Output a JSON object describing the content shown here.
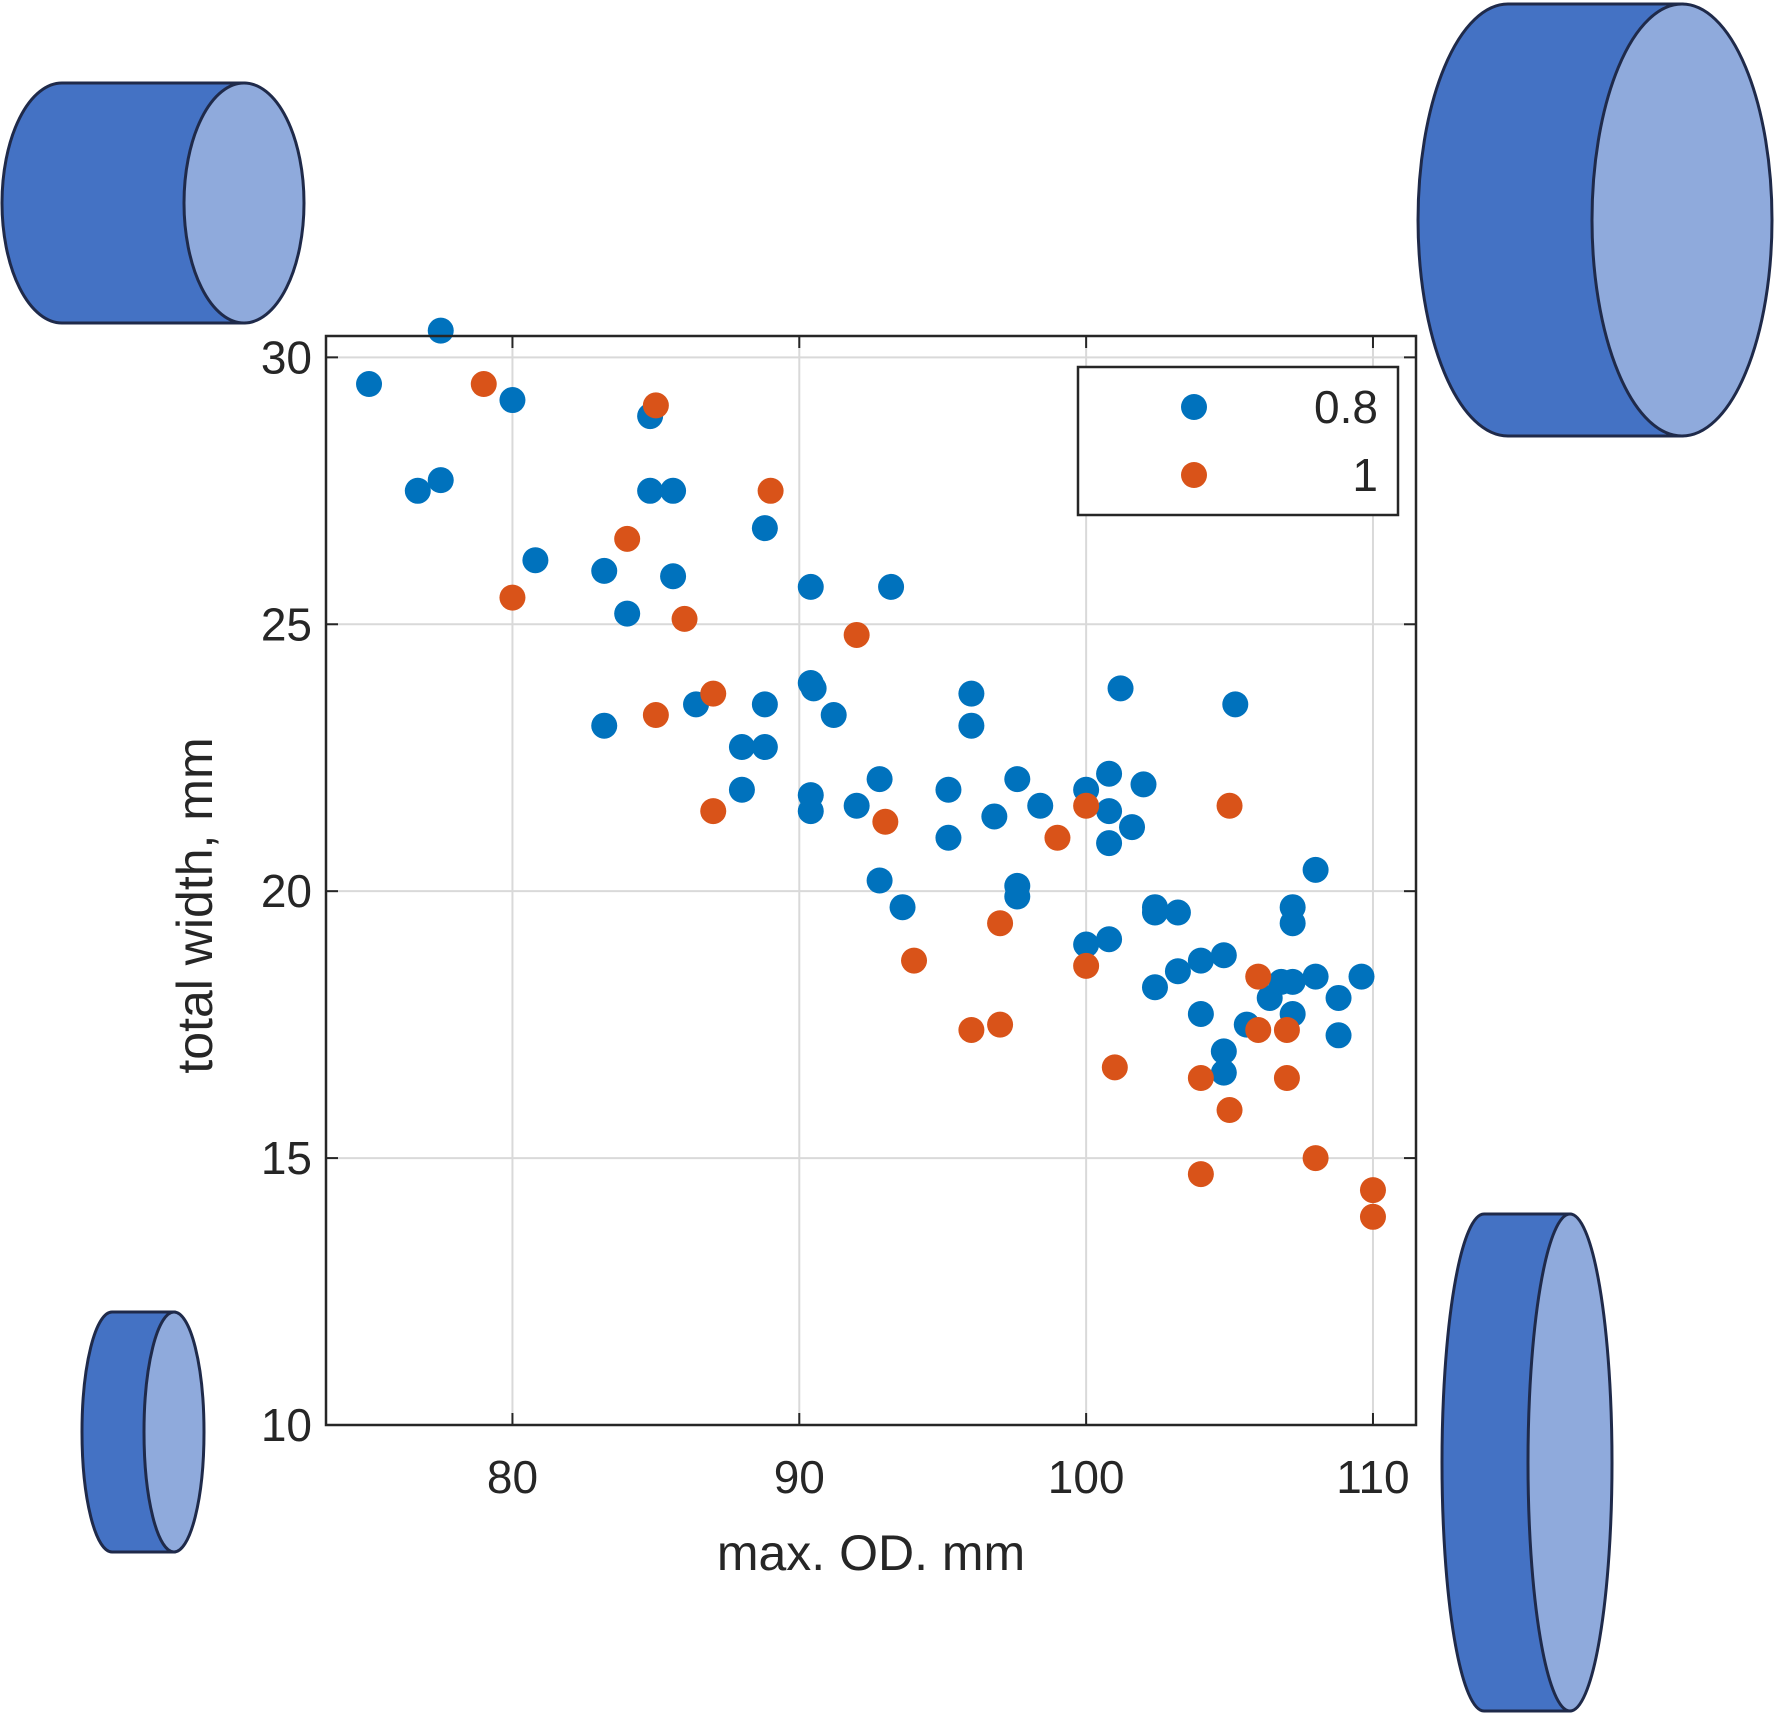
{
  "chart_data": {
    "type": "scatter",
    "xlabel": "max. OD. mm",
    "ylabel": "total width, mm",
    "xlim": [
      73.5,
      111.5
    ],
    "ylim": [
      10,
      30.4
    ],
    "xticks": [
      80,
      90,
      100,
      110
    ],
    "yticks": [
      10,
      15,
      20,
      25,
      30
    ],
    "grid": true,
    "legend_position": "top-right",
    "series": [
      {
        "name": "0.8",
        "color": "#0072BD",
        "points": [
          [
            75.0,
            29.5
          ],
          [
            77.5,
            30.5
          ],
          [
            80.0,
            29.2
          ],
          [
            76.7,
            27.5
          ],
          [
            77.5,
            27.7
          ],
          [
            80.8,
            26.2
          ],
          [
            83.2,
            26.0
          ],
          [
            84.0,
            25.2
          ],
          [
            84.8,
            28.9
          ],
          [
            84.8,
            27.5
          ],
          [
            85.6,
            27.5
          ],
          [
            85.6,
            25.9
          ],
          [
            83.2,
            23.1
          ],
          [
            86.4,
            23.5
          ],
          [
            88.0,
            22.7
          ],
          [
            88.8,
            22.7
          ],
          [
            88.8,
            23.5
          ],
          [
            88.0,
            21.9
          ],
          [
            88.8,
            26.8
          ],
          [
            90.4,
            25.7
          ],
          [
            90.4,
            23.9
          ],
          [
            90.5,
            23.8
          ],
          [
            91.2,
            23.3
          ],
          [
            93.2,
            25.7
          ],
          [
            90.4,
            21.8
          ],
          [
            90.4,
            21.5
          ],
          [
            92.0,
            21.6
          ],
          [
            92.8,
            22.1
          ],
          [
            92.8,
            20.2
          ],
          [
            93.6,
            19.7
          ],
          [
            95.2,
            21.9
          ],
          [
            95.2,
            21.0
          ],
          [
            96.0,
            23.7
          ],
          [
            96.0,
            23.1
          ],
          [
            96.8,
            21.4
          ],
          [
            97.6,
            22.1
          ],
          [
            97.6,
            20.1
          ],
          [
            97.6,
            19.9
          ],
          [
            98.4,
            21.6
          ],
          [
            100.0,
            21.9
          ],
          [
            100.8,
            22.2
          ],
          [
            100.8,
            21.5
          ],
          [
            100.8,
            20.9
          ],
          [
            101.2,
            23.8
          ],
          [
            101.6,
            21.2
          ],
          [
            102.0,
            22.0
          ],
          [
            100.0,
            19.0
          ],
          [
            100.8,
            19.1
          ],
          [
            102.4,
            19.7
          ],
          [
            102.4,
            19.6
          ],
          [
            103.2,
            19.6
          ],
          [
            102.4,
            18.2
          ],
          [
            103.2,
            18.5
          ],
          [
            104.0,
            18.7
          ],
          [
            104.8,
            18.8
          ],
          [
            104.0,
            17.7
          ],
          [
            104.8,
            17.0
          ],
          [
            104.8,
            16.6
          ],
          [
            105.2,
            23.5
          ],
          [
            105.6,
            17.5
          ],
          [
            106.4,
            18.0
          ],
          [
            106.8,
            18.3
          ],
          [
            107.2,
            18.3
          ],
          [
            107.2,
            17.7
          ],
          [
            107.2,
            19.7
          ],
          [
            107.2,
            19.4
          ],
          [
            108.0,
            18.4
          ],
          [
            108.0,
            20.4
          ],
          [
            108.8,
            18.0
          ],
          [
            108.8,
            17.3
          ],
          [
            109.6,
            18.4
          ]
        ]
      },
      {
        "name": "1",
        "color": "#D95319",
        "points": [
          [
            79.0,
            29.5
          ],
          [
            85.0,
            29.1
          ],
          [
            84.0,
            26.6
          ],
          [
            80.0,
            25.5
          ],
          [
            85.0,
            23.3
          ],
          [
            86.0,
            25.1
          ],
          [
            87.0,
            23.7
          ],
          [
            87.0,
            21.5
          ],
          [
            89.0,
            27.5
          ],
          [
            92.0,
            24.8
          ],
          [
            93.0,
            21.3
          ],
          [
            94.0,
            18.7
          ],
          [
            96.0,
            17.4
          ],
          [
            97.0,
            17.5
          ],
          [
            97.0,
            19.4
          ],
          [
            99.0,
            21.0
          ],
          [
            100.0,
            21.6
          ],
          [
            100.0,
            18.6
          ],
          [
            101.0,
            16.7
          ],
          [
            104.0,
            16.5
          ],
          [
            104.0,
            14.7
          ],
          [
            105.0,
            21.6
          ],
          [
            105.0,
            15.9
          ],
          [
            106.0,
            18.4
          ],
          [
            106.0,
            17.4
          ],
          [
            107.0,
            17.4
          ],
          [
            107.0,
            16.5
          ],
          [
            108.0,
            15.0
          ],
          [
            110.0,
            14.4
          ],
          [
            110.0,
            13.9
          ]
        ]
      }
    ]
  },
  "decorations": {
    "cylinder_side_color": "#4472C4",
    "cylinder_face_color": "#8FAADC",
    "cylinder_outline_color": "#1F2A4A"
  }
}
